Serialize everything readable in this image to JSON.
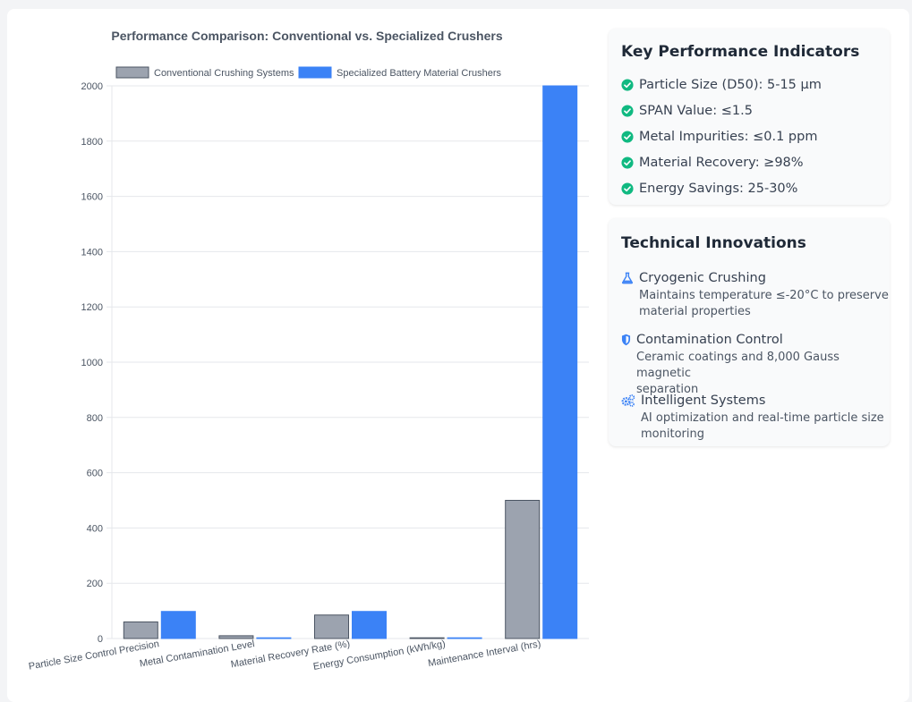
{
  "chart_data": {
    "type": "bar",
    "title": "Performance Comparison: Conventional vs. Specialized Crushers",
    "categories": [
      "Particle Size Control Precision",
      "Metal Contamination Level",
      "Material Recovery Rate (%)",
      "Energy Consumption (kWh/kg)",
      "Maintenance Interval (hrs)"
    ],
    "series": [
      {
        "name": "Conventional Crushing Systems",
        "values": [
          60,
          10,
          85,
          1.2,
          500
        ],
        "color": "#9ca3af",
        "border": "#4b5563"
      },
      {
        "name": "Specialized Battery Material Crushers",
        "values": [
          98,
          0.1,
          98,
          0.9,
          2000
        ],
        "color": "#3b82f6",
        "border": "#3b82f6"
      }
    ],
    "ylim": [
      0,
      2000
    ],
    "yticks": [
      0,
      200,
      400,
      600,
      800,
      1000,
      1200,
      1400,
      1600,
      1800,
      2000
    ],
    "xlabel": "",
    "ylabel": "",
    "legend_position": "top",
    "grid": true
  },
  "kpi": {
    "title": "Key Performance Indicators",
    "items": [
      {
        "label": "Particle Size (D50): 5-15 μm"
      },
      {
        "label": "SPAN Value: ≤1.5"
      },
      {
        "label": "Metal Impurities: ≤0.1 ppm"
      },
      {
        "label": "Material Recovery: ≥98%"
      },
      {
        "label": "Energy Savings: 25-30%"
      }
    ],
    "check_color": "#10b981"
  },
  "innovations": {
    "title": "Technical Innovations",
    "icon_color": "#3b82f6",
    "items": [
      {
        "title": "Cryogenic Crushing",
        "line1": "Maintains temperature ≤-20°C to preserve",
        "line2": "material properties",
        "icon": "flask-icon"
      },
      {
        "title": "Contamination Control",
        "line1": "Ceramic coatings and 8,000 Gauss magnetic",
        "line2": "separation",
        "icon": "shield-icon"
      },
      {
        "title": "Intelligent Systems",
        "line1": "AI optimization and real-time particle size",
        "line2": "monitoring",
        "icon": "gears-icon"
      }
    ]
  }
}
